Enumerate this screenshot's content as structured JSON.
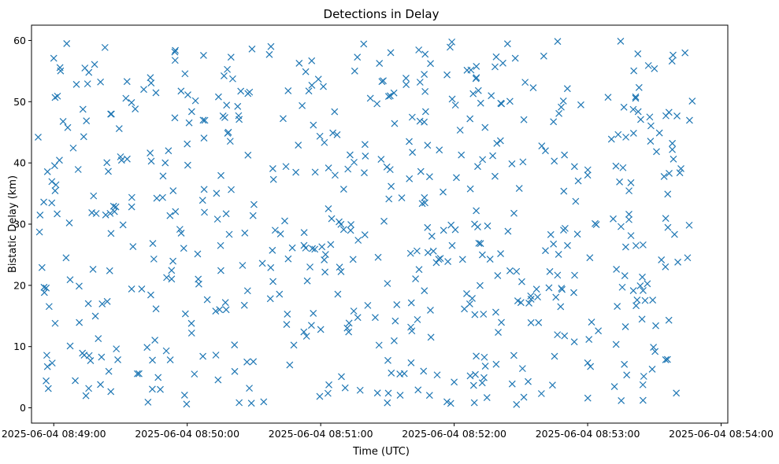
{
  "chart_data": {
    "type": "scatter",
    "title": "Detections in Delay",
    "xlabel": "Time (UTC)",
    "ylabel": "Bistatic Delay (km)",
    "marker": "x",
    "marker_color": "#1f77b4",
    "grid": false,
    "xlim": [
      "2025-06-04 08:48:50",
      "2025-06-04 08:54:03"
    ],
    "ylim": [
      -2.5,
      62.5
    ],
    "xticks": [
      "2025-06-04 08:49:00",
      "2025-06-04 08:50:00",
      "2025-06-04 08:51:00",
      "2025-06-04 08:52:00",
      "2025-06-04 08:53:00",
      "2025-06-04 08:54:00"
    ],
    "yticks": [
      0,
      10,
      20,
      30,
      40,
      50,
      60
    ],
    "x_start": "2025-06-04 08:48:53",
    "x_end": "2025-06-04 08:53:47",
    "point_count": 620,
    "series": [
      {
        "x": [
          "2025-06-04 08:48:53",
          "2025-06-04 08:49:00",
          "2025-06-04 08:49:07",
          "2025-06-04 08:49:14",
          "2025-06-04 08:49:21",
          "2025-06-04 08:49:30",
          "2025-06-04 08:49:45",
          "2025-06-04 08:50:00",
          "2025-06-04 08:50:15",
          "2025-06-04 08:50:30",
          "2025-06-04 08:50:45",
          "2025-06-04 08:51:00",
          "2025-06-04 08:51:15",
          "2025-06-04 08:51:30",
          "2025-06-04 08:51:45",
          "2025-06-04 08:52:00",
          "2025-06-04 08:52:15",
          "2025-06-04 08:52:30",
          "2025-06-04 08:52:45",
          "2025-06-04 08:53:00",
          "2025-06-04 08:53:15",
          "2025-06-04 08:53:30",
          "2025-06-04 08:53:47"
        ],
        "y": [
          44.2,
          57.1,
          30.2,
          55.5,
          3.8,
          41.0,
          24.3,
          43.1,
          26.5,
          33.2,
          15.3,
          12.8,
          40.1,
          20.3,
          38.6,
          4.2,
          29.7,
          17.2,
          40.3,
          38.0,
          29.6,
          55.4,
          50.1
        ]
      }
    ]
  }
}
